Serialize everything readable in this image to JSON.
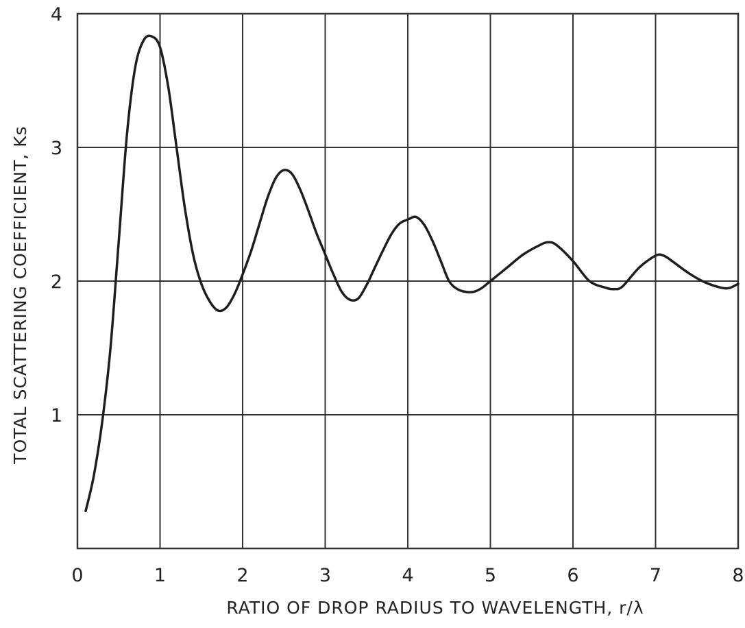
{
  "chart_data": {
    "type": "line",
    "title": "",
    "xlabel": "RATIO OF DROP RADIUS TO WAVELENGTH, r/λ",
    "ylabel": "TOTAL SCATTERING COEFFICIENT, Ks",
    "xlim": [
      0,
      8
    ],
    "ylim": [
      0,
      4
    ],
    "x_ticks": [
      "0",
      "1",
      "2",
      "3",
      "4",
      "5",
      "6",
      "7",
      "8"
    ],
    "y_ticks": [
      "1",
      "2",
      "3",
      "4"
    ],
    "grid": true,
    "colors": {
      "curve": "#1e1e1e",
      "grid": "#333333"
    },
    "series": [
      {
        "x": [
          0.1,
          0.2,
          0.3,
          0.4,
          0.5,
          0.6,
          0.7,
          0.8,
          0.9,
          1.0,
          1.1,
          1.2,
          1.3,
          1.4,
          1.5,
          1.6,
          1.7,
          1.8,
          1.9,
          2.0,
          2.1,
          2.2,
          2.3,
          2.4,
          2.5,
          2.6,
          2.7,
          2.8,
          2.9,
          3.0,
          3.1,
          3.2,
          3.3,
          3.4,
          3.5,
          3.6,
          3.7,
          3.8,
          3.9,
          4.0,
          4.1,
          4.2,
          4.3,
          4.4,
          4.5,
          4.6,
          4.7,
          4.8,
          4.9,
          5.0,
          5.2,
          5.4,
          5.6,
          5.7,
          5.8,
          6.0,
          6.2,
          6.4,
          6.5,
          6.6,
          6.8,
          7.0,
          7.1,
          7.2,
          7.4,
          7.6,
          7.8,
          7.9,
          8.0
        ],
        "values": [
          0.28,
          0.55,
          0.95,
          1.5,
          2.3,
          3.1,
          3.6,
          3.8,
          3.83,
          3.75,
          3.45,
          3.0,
          2.55,
          2.2,
          1.98,
          1.85,
          1.78,
          1.8,
          1.9,
          2.05,
          2.22,
          2.42,
          2.62,
          2.77,
          2.83,
          2.8,
          2.68,
          2.52,
          2.35,
          2.2,
          2.05,
          1.92,
          1.86,
          1.87,
          1.97,
          2.1,
          2.23,
          2.35,
          2.43,
          2.46,
          2.48,
          2.42,
          2.3,
          2.15,
          2.0,
          1.94,
          1.92,
          1.92,
          1.95,
          2.0,
          2.1,
          2.2,
          2.27,
          2.29,
          2.27,
          2.15,
          2.0,
          1.95,
          1.94,
          1.96,
          2.1,
          2.19,
          2.19,
          2.15,
          2.06,
          1.99,
          1.95,
          1.95,
          1.98
        ]
      }
    ]
  }
}
